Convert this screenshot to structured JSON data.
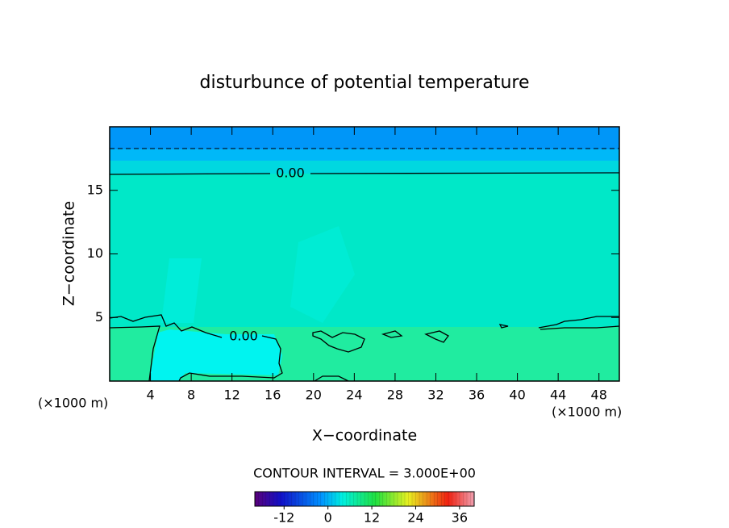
{
  "chart_data": {
    "type": "contour",
    "title": "disturbunce of potential temperature",
    "x_label": "X−coordinate",
    "y_label": "Z−coordinate",
    "x_unit_left": "(×1000 m)",
    "x_unit_right": "(×1000 m)",
    "xlim": [
      0,
      50
    ],
    "xticks": [
      4,
      8,
      12,
      16,
      20,
      24,
      28,
      32,
      36,
      40,
      44,
      48
    ],
    "ylim": [
      0,
      20
    ],
    "yticks": [
      5,
      10,
      15
    ],
    "contour_labels": [
      {
        "value": 0,
        "label": "0.00"
      },
      {
        "value": 0,
        "label": "0.00"
      }
    ],
    "contour_interval_text": "CONTOUR INTERVAL = 3.000E+00",
    "colorbar": {
      "lim": [
        -20,
        40
      ],
      "ticks": [
        -12,
        0,
        12,
        24,
        36
      ]
    }
  }
}
